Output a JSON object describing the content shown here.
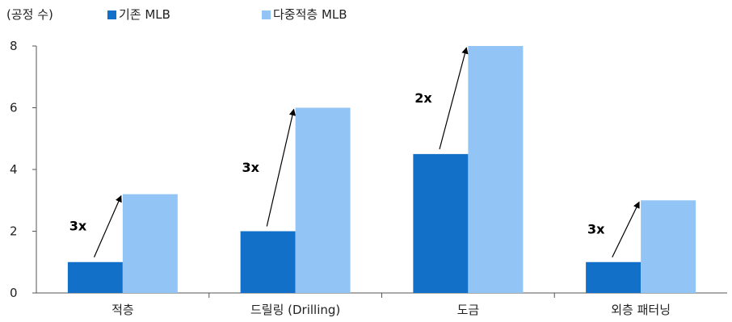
{
  "chart_data": {
    "type": "bar",
    "unit_label": "(공정 수)",
    "categories": [
      "적층",
      "드릴링 (Drilling)",
      "도금",
      "외층 패터닝"
    ],
    "series": [
      {
        "name": "기존 MLB",
        "values": [
          1,
          2,
          4.5,
          1
        ],
        "color": "#1270C8"
      },
      {
        "name": "다중적층 MLB",
        "values": [
          3.2,
          6,
          8,
          3
        ],
        "color": "#92C5F5"
      }
    ],
    "ylim": [
      0,
      8
    ],
    "yticks": [
      0,
      2,
      4,
      6,
      8
    ],
    "grid": false,
    "legend_position": "top",
    "annotations": [
      "3x",
      "3x",
      "2x",
      "3x"
    ],
    "xlabel": "",
    "ylabel": ""
  }
}
